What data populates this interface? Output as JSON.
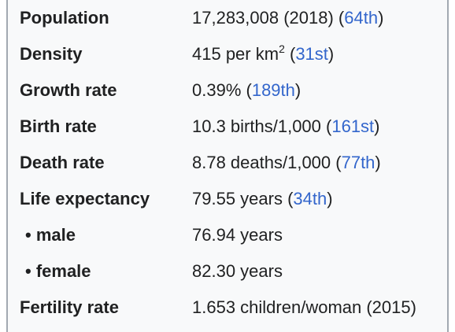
{
  "rows": [
    {
      "label": "Population",
      "value": "17,283,008 (2018) (",
      "link": "64th",
      "tail": ")"
    },
    {
      "label": "Density",
      "value": "415 per km",
      "sup": "2",
      "value2": " (",
      "link": "31st",
      "tail": ")"
    },
    {
      "label": "Growth rate",
      "value": "0.39% (",
      "link": "189th",
      "tail": ")"
    },
    {
      "label": "Birth rate",
      "value": "10.3 births/1,000 (",
      "link": "161st",
      "tail": ")"
    },
    {
      "label": "Death rate",
      "value": "8.78 deaths/1,000 (",
      "link": "77th",
      "tail": ")"
    },
    {
      "label": "Life expectancy",
      "value": "79.55 years (",
      "link": "34th",
      "tail": ")"
    },
    {
      "label": "• male",
      "value": "76.94 years"
    },
    {
      "label": "• female",
      "value": "82.30 years"
    },
    {
      "label": "Fertility rate",
      "value": "1.653 children/woman (2015)"
    }
  ]
}
